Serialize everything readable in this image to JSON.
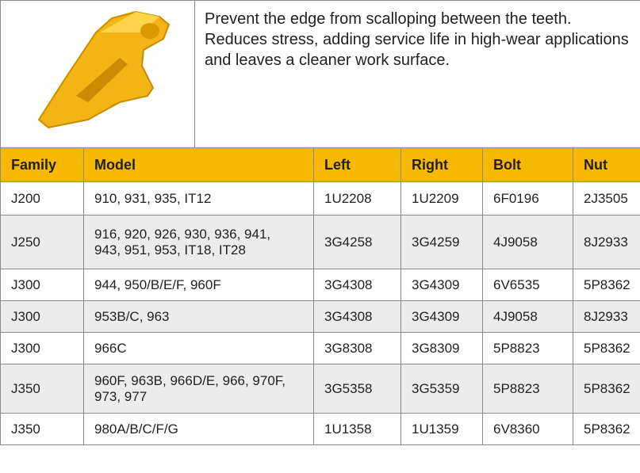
{
  "header": {
    "description": "Prevent the edge from scalloping between the teeth. Reduces stress, adding service life in high-wear applications and leaves a cleaner work surface."
  },
  "table": {
    "columns": [
      "Family",
      "Model",
      "Left",
      "Right",
      "Bolt",
      "Nut"
    ],
    "rows": [
      [
        "J200",
        "910, 931, 935, IT12",
        "1U2208",
        "1U2209",
        "6F0196",
        "2J3505"
      ],
      [
        "J250",
        "916, 920, 926, 930, 936, 941, 943, 951, 953, IT18, IT28",
        "3G4258",
        "3G4259",
        "4J9058",
        "8J2933"
      ],
      [
        "J300",
        "944, 950/B/E/F, 960F",
        "3G4308",
        "3G4309",
        "6V6535",
        "5P8362"
      ],
      [
        "J300",
        "953B/C, 963",
        "3G4308",
        "3G4309",
        "4J9058",
        "8J2933"
      ],
      [
        "J300",
        "966C",
        "3G8308",
        "3G8309",
        "5P8823",
        "5P8362"
      ],
      [
        "J350",
        "960F, 963B, 966D/E, 966, 970F, 973, 977",
        "3G5358",
        "3G5359",
        "5P8823",
        "5P8362"
      ],
      [
        "J350",
        "980A/B/C/F/G",
        "1U1358",
        "1U1359",
        "6V8360",
        "5P8362"
      ]
    ]
  }
}
